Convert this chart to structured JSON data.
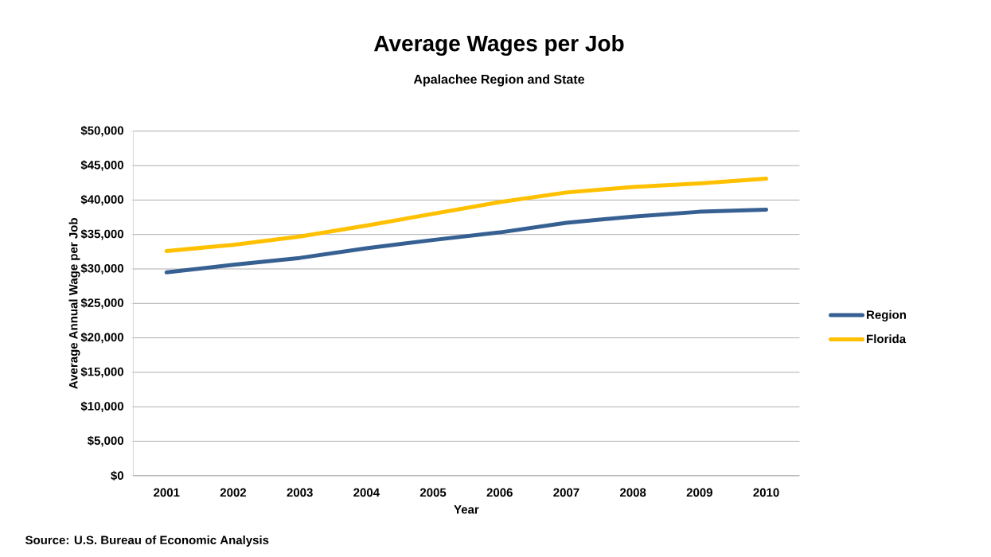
{
  "chart_data": {
    "type": "line",
    "title": "Average Wages per Job",
    "subtitle": "Apalachee Region and State",
    "xlabel": "Year",
    "ylabel": "Average Annual Wage per Job",
    "categories": [
      "2001",
      "2002",
      "2003",
      "2004",
      "2005",
      "2006",
      "2007",
      "2008",
      "2009",
      "2010"
    ],
    "series": [
      {
        "name": "Region",
        "color": "#376092",
        "values": [
          29500,
          30600,
          31600,
          33000,
          34200,
          35300,
          36700,
          37600,
          38300,
          38600
        ]
      },
      {
        "name": "Florida",
        "color": "#ffc000",
        "values": [
          32600,
          33500,
          34700,
          36300,
          38000,
          39700,
          41100,
          41900,
          42400,
          43100
        ]
      }
    ],
    "ylim": [
      0,
      50000
    ],
    "yticks": [
      {
        "value": 0,
        "label": "$0"
      },
      {
        "value": 5000,
        "label": "$5,000"
      },
      {
        "value": 10000,
        "label": "$10,000"
      },
      {
        "value": 15000,
        "label": "$15,000"
      },
      {
        "value": 20000,
        "label": "$20,000"
      },
      {
        "value": 25000,
        "label": "$25,000"
      },
      {
        "value": 30000,
        "label": "$30,000"
      },
      {
        "value": 35000,
        "label": "$35,000"
      },
      {
        "value": 40000,
        "label": "$40,000"
      },
      {
        "value": 45000,
        "label": "$45,000"
      },
      {
        "value": 50000,
        "label": "$50,000"
      }
    ],
    "grid": "y",
    "legend": "right",
    "marker": "none",
    "line_style": "solid",
    "annotations": [
      "Source:    U.S. Bureau of Economic Analysis"
    ]
  }
}
